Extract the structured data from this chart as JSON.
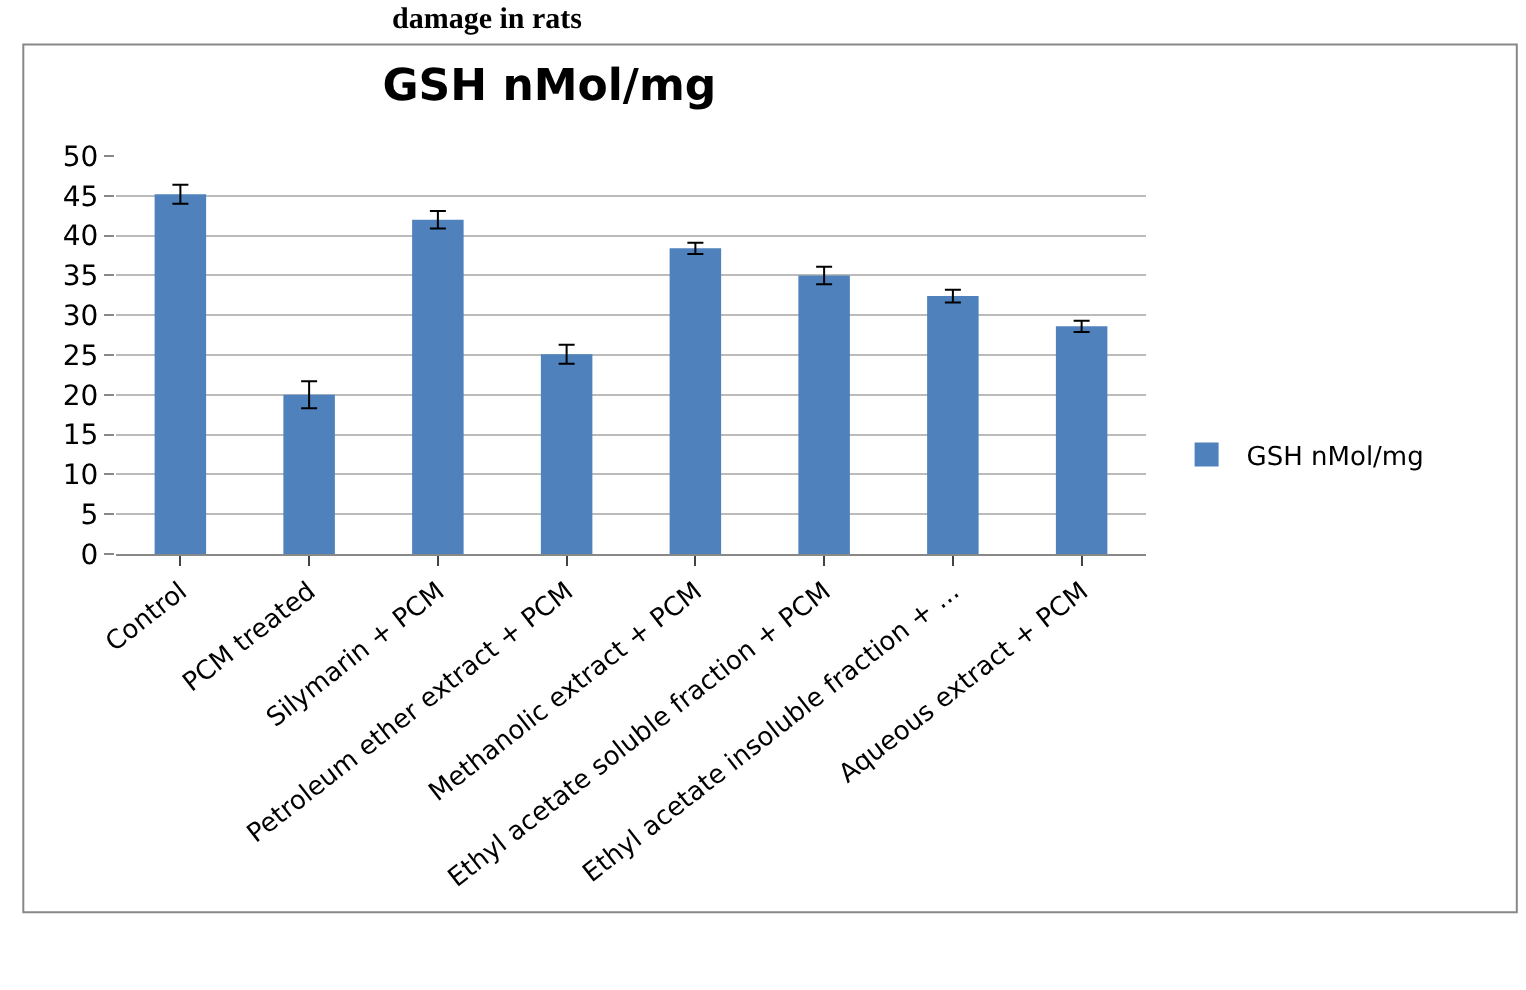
{
  "chart_data": {
    "type": "bar",
    "title": "GSH nMol/mg",
    "annotations": [
      "damage in rats"
    ],
    "categories": [
      "Control",
      "PCM treated",
      "Silymarin + PCM",
      "Petroleum ether extract + PCM",
      "Methanolic extract + PCM",
      "Ethyl acetate soluble fraction + PCM",
      "Ethyl acetate insoluble fraction + ...",
      "Aqueous extract + PCM"
    ],
    "series": [
      {
        "name": "GSH nMol/mg",
        "color": "#4f81bd",
        "values": [
          45.2,
          20.0,
          42.0,
          25.1,
          38.4,
          35.0,
          32.4,
          28.6
        ],
        "errors": [
          1.2,
          1.7,
          1.1,
          1.2,
          0.7,
          1.1,
          0.8,
          0.7
        ]
      }
    ],
    "ylim": [
      0,
      50
    ],
    "yticks": [
      0,
      5,
      10,
      15,
      20,
      25,
      30,
      35,
      40,
      45,
      50
    ],
    "grid": "y",
    "legend": "right"
  }
}
